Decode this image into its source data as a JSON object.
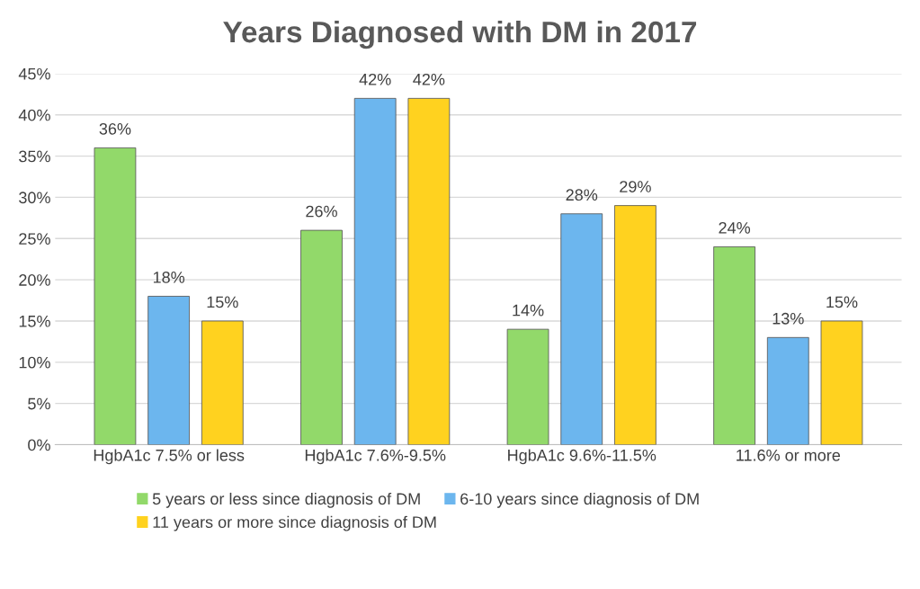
{
  "chart_data": {
    "type": "bar",
    "title": "Years Diagnosed with DM in 2017",
    "categories": [
      "HgbA1c 7.5% or less",
      "HgbA1c 7.6%-9.5%",
      "HgbA1c 9.6%-11.5%",
      "11.6% or more"
    ],
    "series": [
      {
        "name": "5 years or less since diagnosis of DM",
        "color": "#92d96a",
        "values": [
          36,
          26,
          14,
          24
        ],
        "value_labels": [
          "36%",
          "26%",
          "14%",
          "24%"
        ]
      },
      {
        "name": "6-10 years since diagnosis of DM",
        "color": "#6cb6ee",
        "values": [
          18,
          42,
          28,
          13
        ],
        "value_labels": [
          "18%",
          "42%",
          "28%",
          "13%"
        ]
      },
      {
        "name": "11 years or more since diagnosis of DM",
        "color": "#ffd21f",
        "values": [
          15,
          42,
          29,
          15
        ],
        "value_labels": [
          "15%",
          "42%",
          "29%",
          "15%"
        ]
      }
    ],
    "ylim": [
      0,
      45
    ],
    "yticks": [
      {
        "value": 0,
        "label": "0%"
      },
      {
        "value": 5,
        "label": "5%"
      },
      {
        "value": 10,
        "label": "10%"
      },
      {
        "value": 15,
        "label": "15%"
      },
      {
        "value": 20,
        "label": "20%"
      },
      {
        "value": 25,
        "label": "25%"
      },
      {
        "value": 30,
        "label": "30%"
      },
      {
        "value": 35,
        "label": "35%"
      },
      {
        "value": 40,
        "label": "40%"
      },
      {
        "value": 45,
        "label": "45%"
      }
    ],
    "grid": "y",
    "legend": "bottom"
  }
}
